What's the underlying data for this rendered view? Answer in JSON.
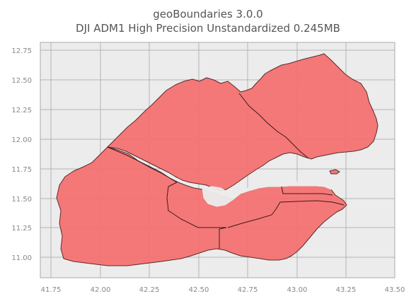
{
  "title": "geoBoundaries 3.0.0",
  "subtitle": "DJI ADM1 High Precision Unstandardized 0.245MB",
  "colors": {
    "plot_background": "#ececec",
    "grid": "#b4b4b4",
    "region_fill": "#f47272",
    "region_stroke": "#5a2a2a",
    "tick_text": "#888888",
    "title_text": "#555555"
  },
  "chart_data": {
    "type": "map",
    "x_ticks": [
      "41.75",
      "42.00",
      "42.25",
      "42.50",
      "42.75",
      "43.00",
      "43.25",
      "43.50"
    ],
    "y_ticks": [
      "12.75",
      "12.50",
      "12.25",
      "12.00",
      "11.75",
      "11.50",
      "11.25",
      "11.00"
    ],
    "xlim": [
      41.7,
      43.5
    ],
    "ylim": [
      10.85,
      12.8
    ],
    "grid": true,
    "regions": 6
  }
}
